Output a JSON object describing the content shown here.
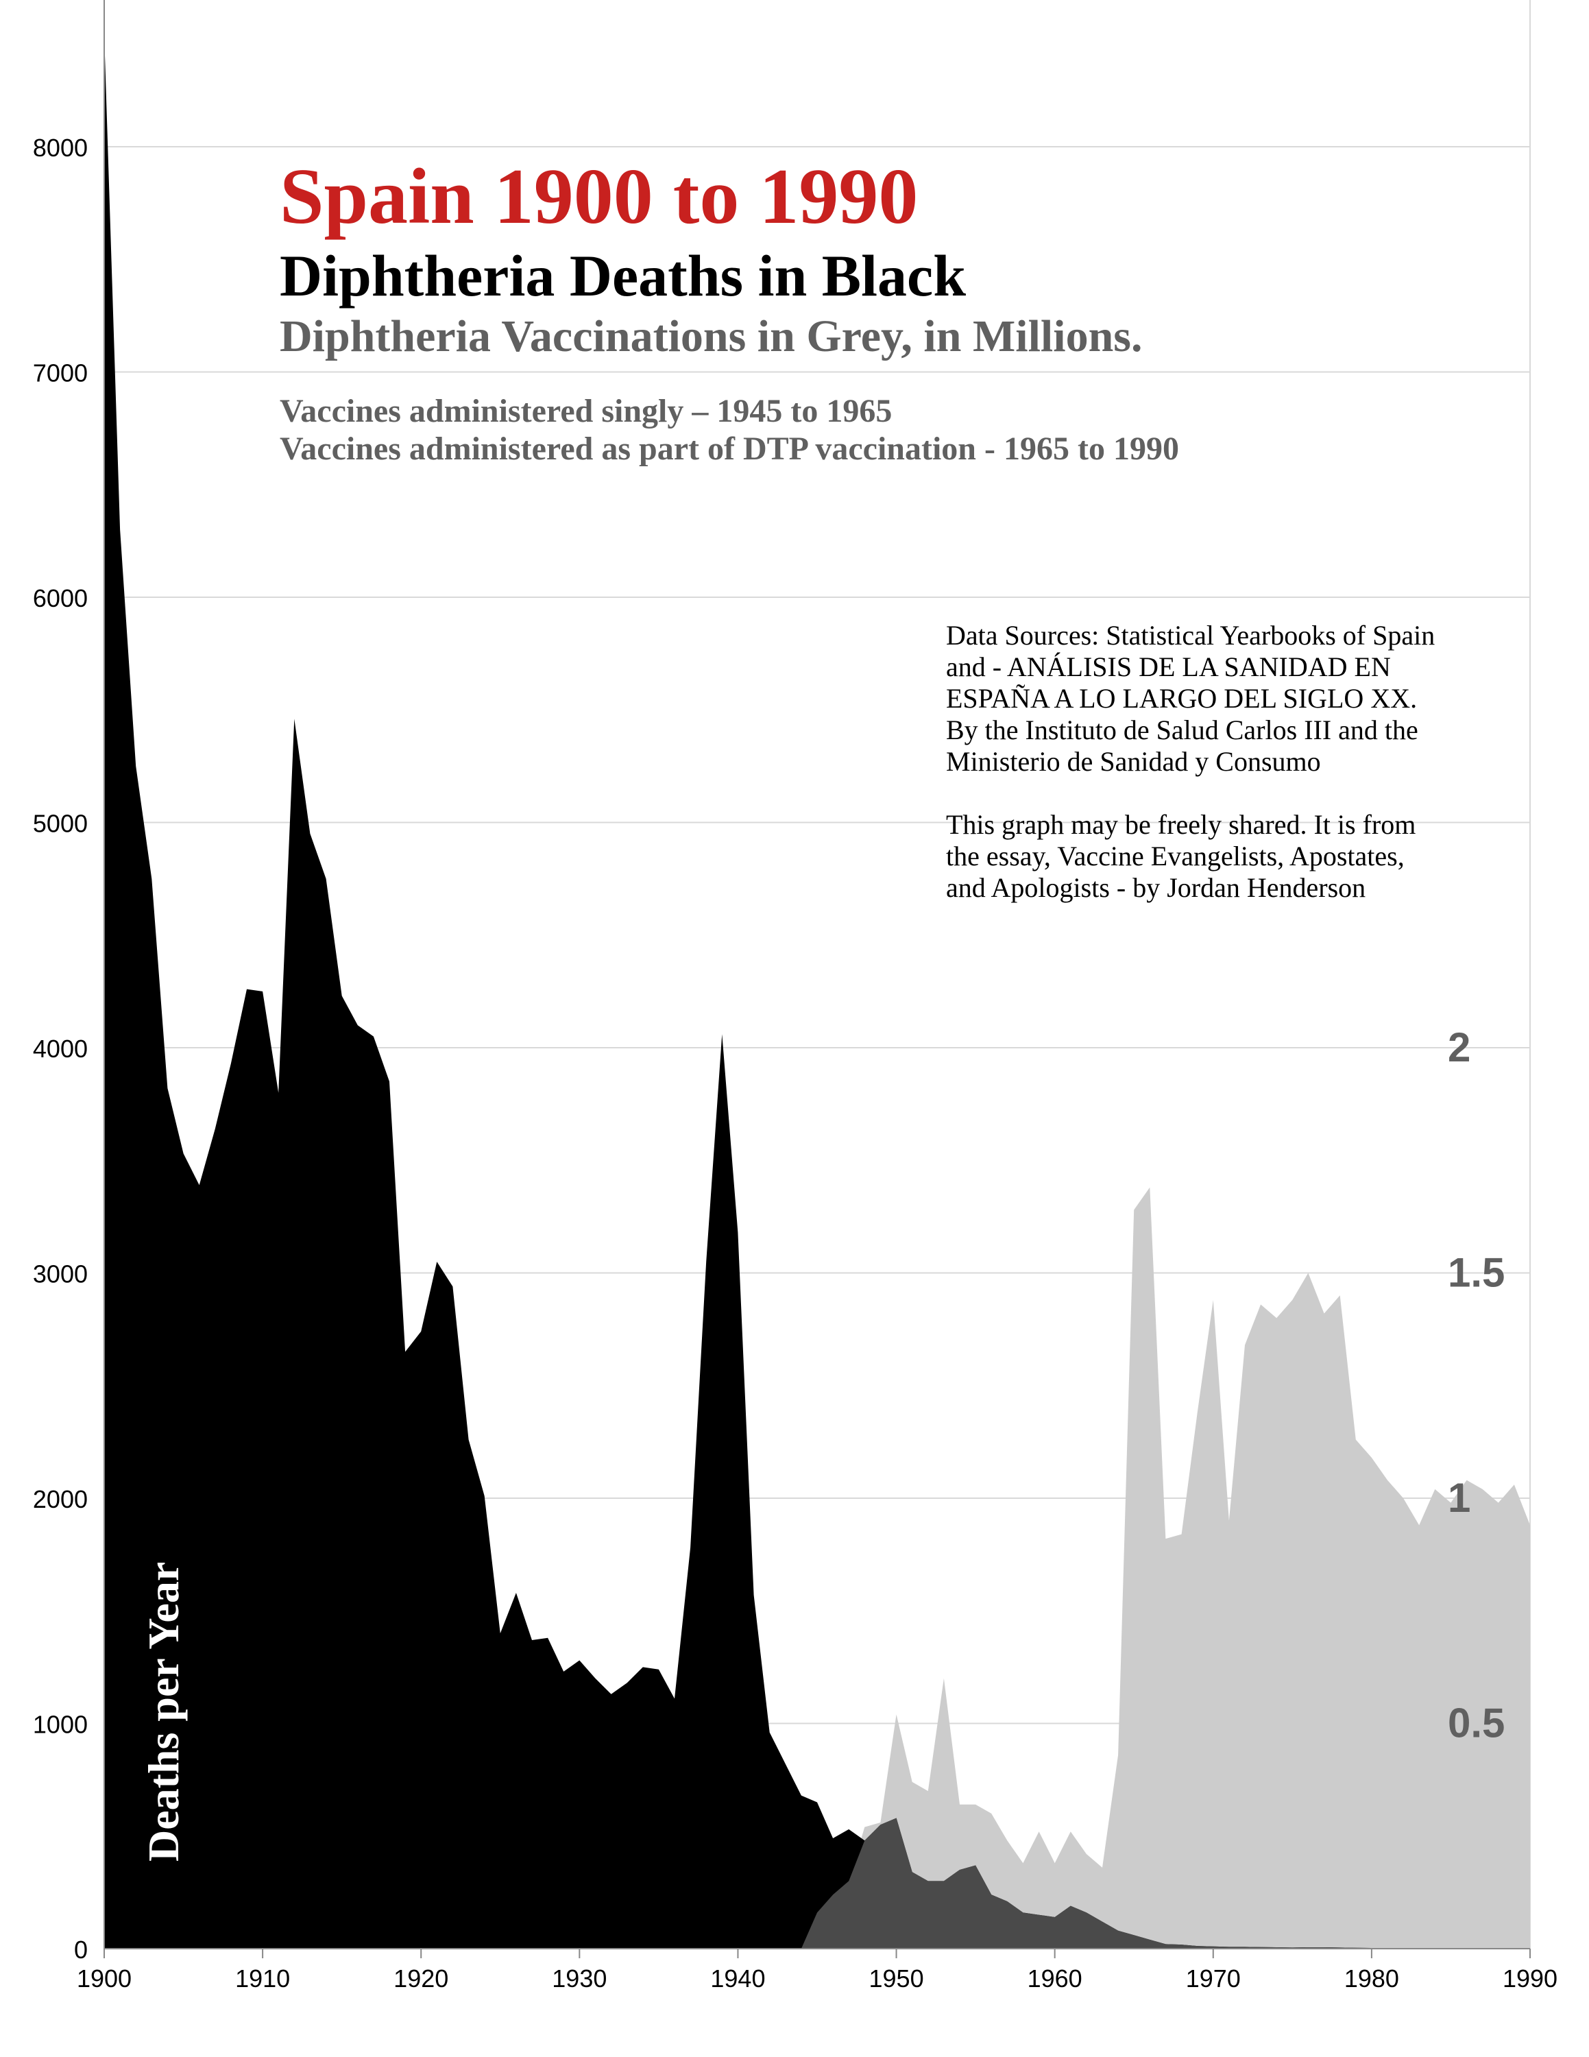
{
  "title": "Spain 1900 to 1990",
  "subtitle1": "Diphtheria Deaths in Black",
  "subtitle2": "Diphtheria Vaccinations in Grey, in Millions.",
  "notes": [
    "Vaccines administered singly – 1945 to 1965",
    "Vaccines administered as part of  DTP vaccination - 1965 to 1990"
  ],
  "sources": "Data Sources: Statistical Yearbooks of Spain and - ANÁLISIS DE LA SANIDAD EN ESPAÑA A LO LARGO DEL SIGLO XX. By the Instituto de Salud Carlos III and the Ministerio de Sanidad y Consumo",
  "share_note": "This graph may be freely shared. It is from the essay, Vaccine Evangelists, Apostates, and Apologists - by Jordan Henderson",
  "colors": {
    "deaths": "#000000",
    "vaccinations": "#cccccc",
    "overlap": "#4a4a4a",
    "title": "#c8211f",
    "grid": "#d9d9d9"
  },
  "chart_data": {
    "type": "area",
    "ylabel": "Deaths per Year",
    "xlim": [
      1900,
      1990
    ],
    "ylim": [
      0,
      8500
    ],
    "x_ticks": [
      "1900",
      "1910",
      "1920",
      "1930",
      "1940",
      "1950",
      "1960",
      "1970",
      "1980",
      "1990"
    ],
    "y_ticks": [
      "0",
      "1000",
      "2000",
      "3000",
      "4000",
      "5000",
      "6000",
      "7000",
      "8000"
    ],
    "y2_ticks": [
      "0.5",
      "1",
      "1.5",
      "2"
    ],
    "grid": true,
    "series": [
      {
        "name": "Diphtheria Deaths",
        "x": [
          1900,
          1901,
          1902,
          1903,
          1904,
          1905,
          1906,
          1907,
          1908,
          1909,
          1910,
          1911,
          1912,
          1913,
          1914,
          1915,
          1916,
          1917,
          1918,
          1919,
          1920,
          1921,
          1922,
          1923,
          1924,
          1925,
          1926,
          1927,
          1928,
          1929,
          1930,
          1931,
          1932,
          1933,
          1934,
          1935,
          1936,
          1937,
          1938,
          1939,
          1940,
          1941,
          1942,
          1943,
          1944,
          1945,
          1946,
          1947,
          1948,
          1949,
          1950,
          1951,
          1952,
          1953,
          1954,
          1955,
          1956,
          1957,
          1958,
          1959,
          1960,
          1961,
          1962,
          1963,
          1964,
          1965,
          1966,
          1967,
          1968,
          1969,
          1970,
          1971,
          1972,
          1973,
          1974,
          1975,
          1976,
          1977,
          1978,
          1979,
          1980,
          1981,
          1982,
          1983,
          1984,
          1985,
          1986,
          1987,
          1988,
          1989,
          1990
        ],
        "values": [
          8500,
          6300,
          5250,
          4750,
          3820,
          3530,
          3390,
          3640,
          3930,
          4260,
          4250,
          3800,
          5460,
          4950,
          4750,
          4230,
          4100,
          4050,
          3850,
          2650,
          2740,
          3050,
          2940,
          2260,
          2010,
          1400,
          1580,
          1370,
          1380,
          1230,
          1280,
          1200,
          1130,
          1180,
          1250,
          1240,
          1110,
          1780,
          3050,
          4060,
          3180,
          1570,
          960,
          820,
          680,
          650,
          490,
          530,
          480,
          550,
          580,
          340,
          300,
          300,
          350,
          370,
          240,
          210,
          160,
          150,
          140,
          190,
          160,
          120,
          80,
          60,
          40,
          20,
          18,
          12,
          10,
          8,
          8,
          7,
          6,
          5,
          6,
          6,
          5,
          4,
          3,
          3,
          2,
          2,
          2,
          2,
          1,
          1,
          1,
          1,
          1
        ]
      },
      {
        "name": "Diphtheria Vaccinations (millions)",
        "x": [
          1944,
          1945,
          1946,
          1947,
          1948,
          1949,
          1950,
          1951,
          1952,
          1953,
          1954,
          1955,
          1956,
          1957,
          1958,
          1959,
          1960,
          1961,
          1962,
          1963,
          1964,
          1965,
          1966,
          1967,
          1968,
          1969,
          1970,
          1971,
          1972,
          1973,
          1974,
          1975,
          1976,
          1977,
          1978,
          1979,
          1980,
          1981,
          1982,
          1983,
          1984,
          1985,
          1986,
          1987,
          1988,
          1989,
          1990
        ],
        "values": [
          0,
          0.08,
          0.12,
          0.15,
          0.27,
          0.28,
          0.52,
          0.37,
          0.35,
          0.6,
          0.32,
          0.32,
          0.3,
          0.24,
          0.19,
          0.26,
          0.19,
          0.26,
          0.21,
          0.18,
          0.43,
          1.64,
          1.69,
          0.91,
          0.92,
          1.19,
          1.44,
          0.95,
          1.34,
          1.43,
          1.4,
          1.44,
          1.5,
          1.41,
          1.45,
          1.13,
          1.09,
          1.04,
          1.0,
          0.94,
          1.02,
          0.99,
          1.04,
          1.02,
          0.99,
          1.03,
          0.94
        ]
      }
    ]
  }
}
